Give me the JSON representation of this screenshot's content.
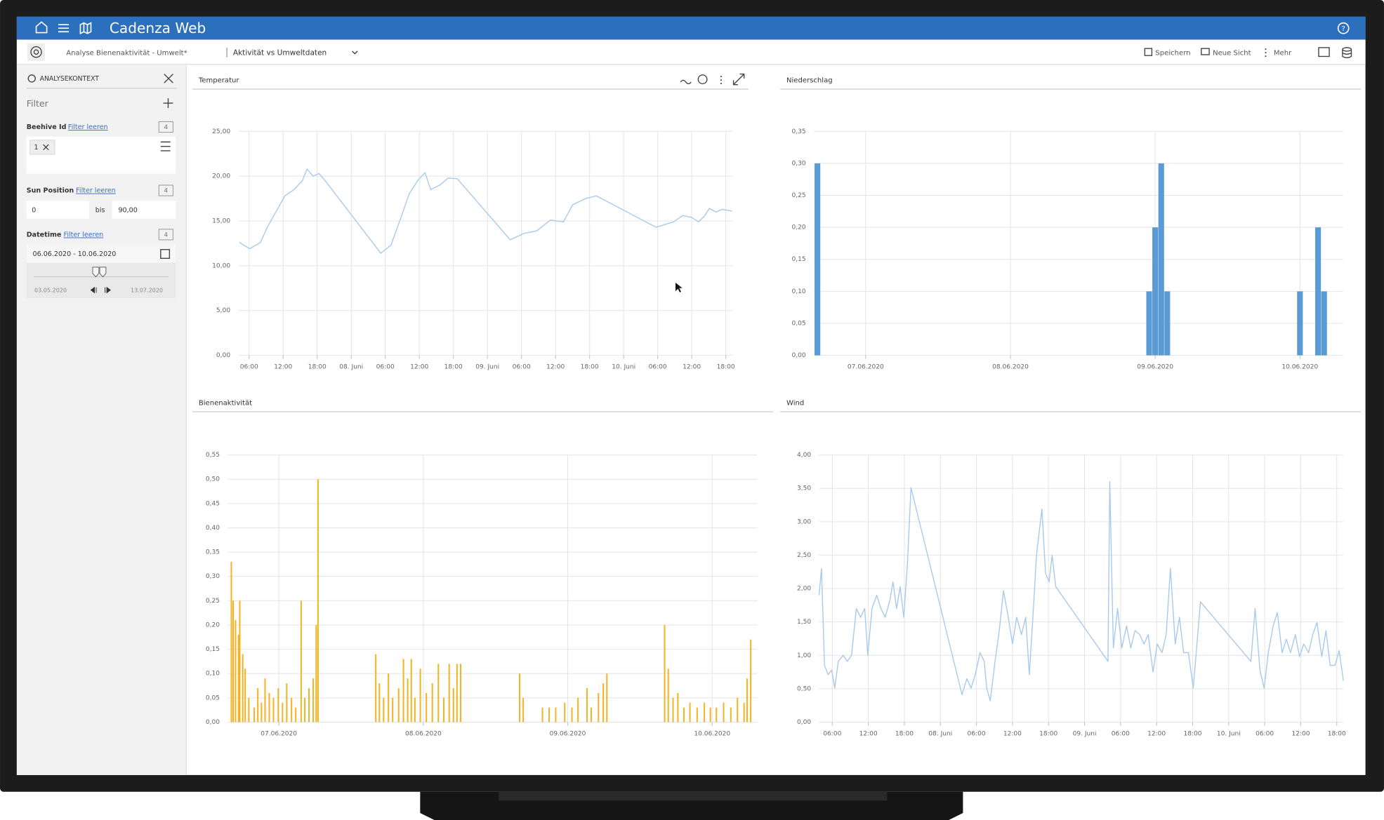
{
  "header": {
    "title": "Cadenza Web"
  },
  "toolbar": {
    "analysis": "Analyse Bienenaktivität - Umwelt*",
    "view": "Aktivität vs Umweltdaten",
    "save": "Speichern",
    "new_view": "Neue Sicht",
    "more": "Mehr"
  },
  "sidebar": {
    "title": "ANALYSEKONTEXT",
    "filter": "Filter",
    "filters": [
      {
        "label": "Beehive Id",
        "clear": "Filter leeren",
        "count": 4,
        "chip": 1
      },
      {
        "label": "Sun Position",
        "clear": "Filter leeren",
        "count": 4,
        "from": "0",
        "to_label": "bis",
        "to": "90,00"
      },
      {
        "label": "Datetime",
        "clear": "Filter leeren",
        "count": 4,
        "range": "06.06.2020 - 10.06.2020",
        "min": "03.05.2020",
        "max": "13.07.2020"
      }
    ]
  },
  "chart_data": [
    {
      "type": "line",
      "title": "Temperatur",
      "color": "#a8c9ec",
      "grid": true,
      "x": [
        4.3,
        6.1,
        8,
        9.2,
        10.8,
        12.3,
        13.9,
        15.4,
        16.2,
        17.3,
        18.3,
        19.4,
        29.2,
        31,
        32.6,
        34.2,
        35.7,
        37,
        38,
        39.6,
        41.1,
        42.7,
        52,
        54.4,
        56.7,
        59.1,
        61.4,
        63,
        65.3,
        67.2,
        77.7,
        80.8,
        82.4,
        84,
        85.2,
        86.3,
        87.1,
        88.3,
        89.4,
        91.1
      ],
      "values": [
        12.6,
        11.9,
        12.6,
        14.3,
        16.1,
        17.8,
        18.5,
        19.5,
        20.8,
        20,
        20.3,
        19.5,
        11.4,
        12.3,
        15.1,
        18,
        19.5,
        20.4,
        18.5,
        19,
        19.8,
        19.7,
        12.9,
        13.6,
        13.9,
        15.1,
        14.9,
        16.8,
        17.5,
        17.8,
        14.3,
        14.9,
        15.6,
        15.4,
        14.9,
        15.6,
        16.4,
        16,
        16.3,
        16.1
      ],
      "xlim": [
        4.1,
        91.2
      ],
      "xticks": [
        {
          "value": 6,
          "label": "06:00"
        },
        {
          "value": 12,
          "label": "12:00"
        },
        {
          "value": 18,
          "label": "18:00"
        },
        {
          "value": 24,
          "label": "08. Juni"
        },
        {
          "value": 30,
          "label": "06:00"
        },
        {
          "value": 36,
          "label": "12:00"
        },
        {
          "value": 42,
          "label": "18:00"
        },
        {
          "value": 48,
          "label": "09. Juni"
        },
        {
          "value": 54,
          "label": "06:00"
        },
        {
          "value": 60,
          "label": "12:00"
        },
        {
          "value": 66,
          "label": "18:00"
        },
        {
          "value": 72,
          "label": "10. Juni"
        },
        {
          "value": 78,
          "label": "06:00"
        },
        {
          "value": 84,
          "label": "12:00"
        },
        {
          "value": 90,
          "label": "18:00"
        }
      ],
      "ylim": [
        0,
        25
      ],
      "yticks": [
        {
          "value": 0,
          "label": "0,00"
        },
        {
          "value": 5,
          "label": "5,00"
        },
        {
          "value": 10,
          "label": "10,00"
        },
        {
          "value": 15,
          "label": "15,00"
        },
        {
          "value": 20,
          "label": "20,00"
        },
        {
          "value": 25,
          "label": "25,00"
        }
      ]
    },
    {
      "type": "bar",
      "title": "Niederschlag",
      "color": "#5b9bd5",
      "grid": true,
      "x": [
        -8,
        47,
        48,
        49,
        50,
        72,
        75,
        76
      ],
      "values": [
        0.3,
        0.1,
        0.2,
        0.3,
        0.1,
        0.1,
        0.2,
        0.1
      ],
      "xlim": [
        -8.6,
        79.2
      ],
      "xticks": [
        {
          "value": 0,
          "label": "07.06.2020"
        },
        {
          "value": 24,
          "label": "08.06.2020"
        },
        {
          "value": 48,
          "label": "09.06.2020"
        },
        {
          "value": 72,
          "label": "10.06.2020"
        }
      ],
      "ylim": [
        0,
        0.35
      ],
      "yticks": [
        {
          "value": 0,
          "label": "0,00"
        },
        {
          "value": 0.05,
          "label": "0,05"
        },
        {
          "value": 0.1,
          "label": "0,10"
        },
        {
          "value": 0.15,
          "label": "0,15"
        },
        {
          "value": 0.2,
          "label": "0,20"
        },
        {
          "value": 0.25,
          "label": "0,25"
        },
        {
          "value": 0.3,
          "label": "0,30"
        },
        {
          "value": 0.35,
          "label": "0,35"
        }
      ]
    },
    {
      "type": "bar",
      "title": "Bienenaktivität",
      "color": "#f5b324",
      "grid": true,
      "x": [
        -7.9,
        -7.6,
        -7.2,
        -6.7,
        -6.5,
        -6.0,
        -5.6,
        -5.0,
        -4.1,
        -3.5,
        -2.9,
        -2.3,
        -1.6,
        -0.9,
        -0.1,
        0.6,
        1.3,
        2.1,
        2.8,
        3.7,
        4.3,
        5.0,
        5.7,
        6.2,
        6.5,
        16.1,
        16.7,
        17.4,
        18.2,
        18.9,
        19.9,
        20.7,
        21.4,
        22.0,
        22.6,
        23.5,
        24.5,
        25.5,
        26.5,
        27.4,
        28.3,
        29.0,
        29.6,
        30.2,
        40.0,
        40.6,
        43.8,
        44.9,
        46.0,
        47.5,
        48.7,
        49.7,
        51.2,
        51.9,
        53.1,
        53.9,
        54.5,
        64.1,
        64.7,
        65.5,
        66.3,
        67.3,
        68.3,
        69.5,
        70.7,
        71.7,
        72.7,
        73.9,
        75.1,
        76.2,
        77.3,
        77.8,
        78.4
      ],
      "values": [
        0.33,
        0.25,
        0.21,
        0.18,
        0.25,
        0.14,
        0.11,
        0.05,
        0.03,
        0.07,
        0.04,
        0.09,
        0.06,
        0.05,
        0.07,
        0.04,
        0.08,
        0.05,
        0.03,
        0.25,
        0.05,
        0.07,
        0.09,
        0.2,
        0.5,
        0.14,
        0.08,
        0.05,
        0.1,
        0.05,
        0.07,
        0.13,
        0.09,
        0.13,
        0.05,
        0.11,
        0.06,
        0.08,
        0.12,
        0.05,
        0.12,
        0.07,
        0.12,
        0.12,
        0.1,
        0.05,
        0.03,
        0.03,
        0.03,
        0.04,
        0.03,
        0.05,
        0.07,
        0.03,
        0.06,
        0.08,
        0.1,
        0.2,
        0.11,
        0.05,
        0.06,
        0.03,
        0.04,
        0.03,
        0.04,
        0.03,
        0.03,
        0.04,
        0.03,
        0.05,
        0.04,
        0.09,
        0.17
      ],
      "xlim": [
        -8.5,
        79.5
      ],
      "xticks": [
        {
          "value": 0,
          "label": "07.06.2020"
        },
        {
          "value": 24,
          "label": "08.06.2020"
        },
        {
          "value": 48,
          "label": "09.06.2020"
        },
        {
          "value": 72,
          "label": "10.06.2020"
        }
      ],
      "ylim": [
        0,
        0.55
      ],
      "yticks": [
        {
          "value": 0,
          "label": "0,00"
        },
        {
          "value": 0.05,
          "label": "0,05"
        },
        {
          "value": 0.1,
          "label": "0,10"
        },
        {
          "value": 0.15,
          "label": "0,15"
        },
        {
          "value": 0.2,
          "label": "0,20"
        },
        {
          "value": 0.25,
          "label": "0,25"
        },
        {
          "value": 0.3,
          "label": "0,30"
        },
        {
          "value": 0.35,
          "label": "0,35"
        },
        {
          "value": 0.4,
          "label": "0,40"
        },
        {
          "value": 0.45,
          "label": "0,45"
        },
        {
          "value": 0.5,
          "label": "0,50"
        },
        {
          "value": 0.55,
          "label": "0,55"
        }
      ]
    },
    {
      "type": "line",
      "title": "Wind",
      "color": "#a8c9ec",
      "grid": true,
      "x": [
        3.8,
        4.2,
        4.7,
        5.3,
        5.9,
        6.4,
        7.0,
        7.8,
        8.5,
        9.2,
        10.0,
        10.7,
        11.4,
        11.9,
        12.6,
        13.4,
        14.1,
        14.8,
        15.6,
        16.1,
        16.7,
        17.3,
        17.9,
        18.5,
        19.1,
        27.6,
        28.4,
        29.1,
        29.8,
        30.6,
        31.3,
        31.7,
        32.3,
        33.1,
        33.8,
        34.5,
        35.3,
        36.0,
        36.7,
        37.5,
        38.2,
        38.8,
        39.4,
        40.0,
        40.9,
        41.5,
        42.1,
        42.6,
        43.2,
        51.9,
        52.2,
        52.8,
        53.5,
        54.2,
        55.0,
        55.7,
        56.4,
        57.2,
        57.9,
        58.6,
        59.4,
        60.1,
        60.9,
        61.6,
        62.3,
        63.1,
        63.8,
        64.5,
        65.3,
        66.1,
        67.3,
        75.7,
        76.4,
        77.2,
        77.9,
        78.6,
        79.4,
        80.1,
        80.9,
        81.6,
        82.3,
        83.1,
        83.8,
        84.5,
        85.3,
        86.0,
        86.7,
        87.5,
        88.2,
        88.9,
        89.7,
        90.4,
        91.1
      ],
      "values": [
        1.9,
        2.3,
        0.85,
        0.71,
        0.78,
        0.51,
        0.91,
        1.0,
        0.91,
        1.0,
        1.7,
        1.57,
        1.7,
        1.0,
        1.7,
        1.9,
        1.7,
        1.57,
        1.83,
        2.1,
        1.7,
        2.03,
        1.57,
        2.36,
        3.51,
        0.41,
        0.65,
        0.51,
        0.71,
        1.04,
        0.91,
        0.51,
        0.32,
        0.91,
        1.37,
        1.97,
        1.57,
        1.17,
        1.57,
        1.31,
        1.57,
        0.71,
        1.57,
        2.5,
        3.19,
        2.23,
        2.1,
        2.5,
        2.03,
        0.91,
        3.6,
        1.11,
        1.7,
        1.11,
        1.44,
        1.11,
        1.37,
        1.31,
        1.17,
        1.31,
        0.75,
        1.17,
        1.04,
        1.31,
        2.3,
        1.17,
        1.57,
        1.04,
        1.04,
        0.51,
        1.8,
        0.91,
        1.7,
        0.78,
        0.51,
        1.04,
        1.44,
        1.64,
        1.04,
        1.24,
        1.04,
        1.31,
        0.98,
        1.17,
        1.04,
        1.31,
        1.49,
        0.98,
        1.37,
        0.85,
        0.85,
        1.07,
        0.62
      ],
      "xlim": [
        3.8,
        91.1
      ],
      "xticks": [
        {
          "value": 6,
          "label": "06:00"
        },
        {
          "value": 12,
          "label": "12:00"
        },
        {
          "value": 18,
          "label": "18:00"
        },
        {
          "value": 24,
          "label": "08. Juni"
        },
        {
          "value": 30,
          "label": "06:00"
        },
        {
          "value": 36,
          "label": "12:00"
        },
        {
          "value": 42,
          "label": "18:00"
        },
        {
          "value": 48,
          "label": "09. Juni"
        },
        {
          "value": 54,
          "label": "06:00"
        },
        {
          "value": 60,
          "label": "12:00"
        },
        {
          "value": 66,
          "label": "18:00"
        },
        {
          "value": 72,
          "label": "10. Juni"
        },
        {
          "value": 78,
          "label": "06:00"
        },
        {
          "value": 84,
          "label": "12:00"
        },
        {
          "value": 90,
          "label": "18:00"
        }
      ],
      "ylim": [
        0,
        4
      ],
      "yticks": [
        {
          "value": 0,
          "label": "0,00"
        },
        {
          "value": 0.5,
          "label": "0,50"
        },
        {
          "value": 1,
          "label": "1,00"
        },
        {
          "value": 1.5,
          "label": "1,50"
        },
        {
          "value": 2,
          "label": "2,00"
        },
        {
          "value": 2.5,
          "label": "2,50"
        },
        {
          "value": 3,
          "label": "3,00"
        },
        {
          "value": 3.5,
          "label": "3,50"
        },
        {
          "value": 4,
          "label": "4,00"
        }
      ]
    }
  ]
}
